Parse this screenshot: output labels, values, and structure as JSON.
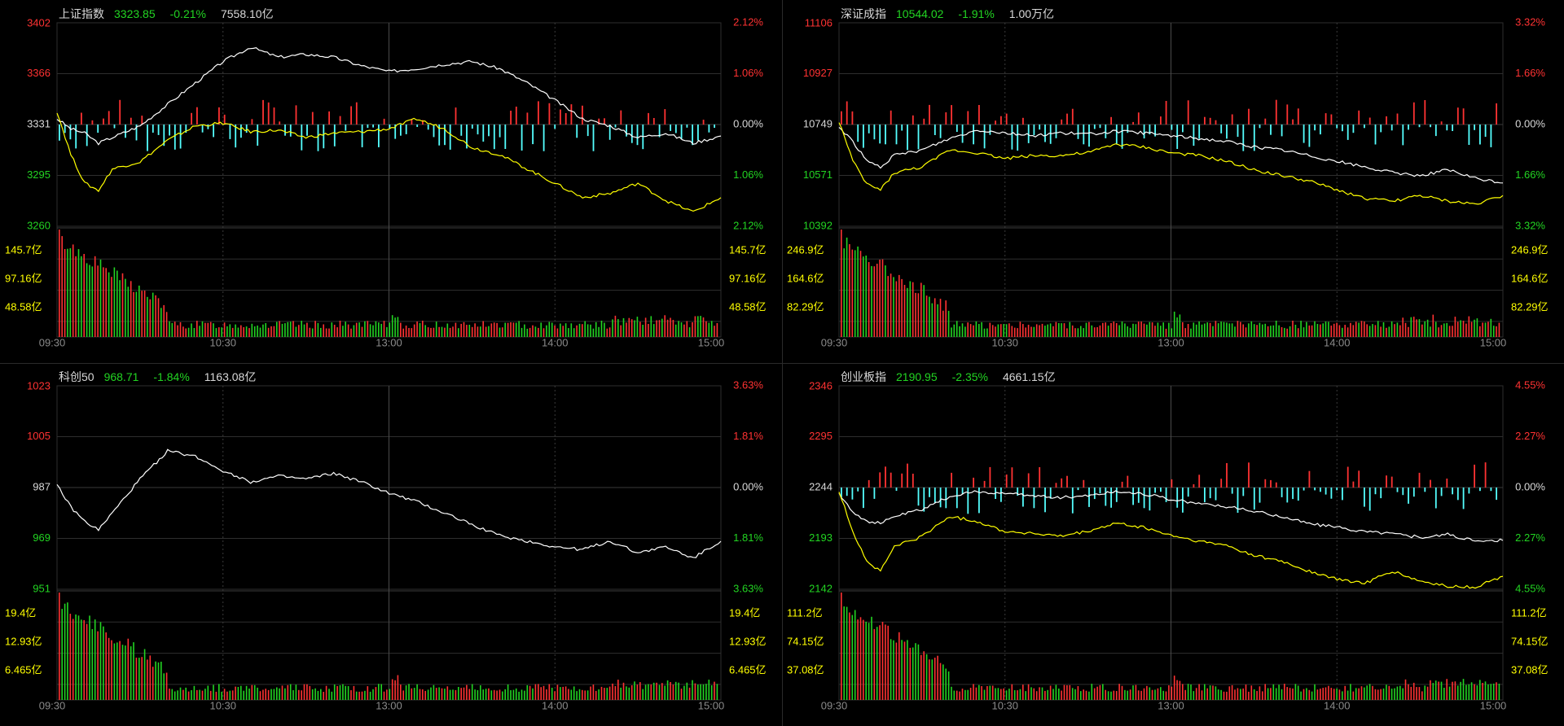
{
  "chart_data": [
    {
      "type": "line",
      "title": "上证指数",
      "price": "3323.85",
      "change_pct": "-0.21%",
      "amount": "7558.10亿",
      "y_ticks_left": [
        "3402",
        "3366",
        "3331",
        "3295",
        "3260"
      ],
      "y_ticks_right": [
        "2.12%",
        "1.06%",
        "0.00%",
        "1.06%",
        "2.12%"
      ],
      "ylim": [
        3260,
        3402
      ],
      "prev_close": 3331,
      "volume_ticks_left": [
        "145.7亿",
        "97.16亿",
        "48.58亿"
      ],
      "volume_ticks_right": [
        "145.7亿",
        "97.16亿",
        "48.58亿"
      ],
      "x_ticks": [
        "09:30",
        "10:30",
        "13:00",
        "14:00",
        "15:00"
      ],
      "has_yellow": true,
      "has_bars": true,
      "series": [
        {
          "color": "#ffffff",
          "x": [
            0,
            5,
            10,
            15,
            20,
            30,
            40,
            50,
            60,
            70,
            80,
            90,
            100,
            110,
            120,
            130,
            140,
            150,
            160,
            170,
            180,
            190,
            200,
            210,
            220,
            230,
            240
          ],
          "y": [
            3335,
            3328,
            3325,
            3318,
            3322,
            3330,
            3345,
            3360,
            3375,
            3385,
            3378,
            3380,
            3378,
            3372,
            3368,
            3370,
            3373,
            3375,
            3370,
            3360,
            3348,
            3335,
            3330,
            3322,
            3325,
            3318,
            3323
          ]
        },
        {
          "color": "#ffff00",
          "x": [
            0,
            5,
            10,
            15,
            20,
            30,
            40,
            50,
            60,
            70,
            80,
            90,
            100,
            110,
            120,
            130,
            140,
            150,
            160,
            170,
            180,
            190,
            200,
            210,
            220,
            230,
            240
          ],
          "y": [
            3340,
            3310,
            3290,
            3285,
            3300,
            3305,
            3320,
            3330,
            3332,
            3326,
            3327,
            3322,
            3325,
            3326,
            3328,
            3335,
            3328,
            3315,
            3310,
            3300,
            3290,
            3280,
            3283,
            3290,
            3278,
            3270,
            3280
          ]
        }
      ]
    },
    {
      "type": "line",
      "title": "深证成指",
      "price": "10544.02",
      "change_pct": "-1.91%",
      "amount": "1.00万亿",
      "y_ticks_left": [
        "11106",
        "10927",
        "10749",
        "10571",
        "10392"
      ],
      "y_ticks_right": [
        "3.32%",
        "1.66%",
        "0.00%",
        "1.66%",
        "3.32%"
      ],
      "ylim": [
        10392,
        11106
      ],
      "prev_close": 10749,
      "volume_ticks_left": [
        "246.9亿",
        "164.6亿",
        "82.29亿"
      ],
      "volume_ticks_right": [
        "246.9亿",
        "164.6亿",
        "82.29亿"
      ],
      "x_ticks": [
        "09:30",
        "10:30",
        "13:00",
        "14:00",
        "15:00"
      ],
      "has_yellow": true,
      "has_bars": true,
      "series": [
        {
          "color": "#ffffff",
          "x": [
            0,
            5,
            10,
            15,
            20,
            30,
            40,
            50,
            60,
            70,
            80,
            90,
            100,
            110,
            120,
            130,
            140,
            150,
            160,
            170,
            180,
            190,
            200,
            210,
            220,
            230,
            240
          ],
          "y": [
            10740,
            10690,
            10620,
            10600,
            10640,
            10660,
            10700,
            10730,
            10720,
            10710,
            10720,
            10715,
            10725,
            10720,
            10710,
            10700,
            10690,
            10670,
            10660,
            10640,
            10620,
            10600,
            10580,
            10570,
            10590,
            10560,
            10544
          ]
        },
        {
          "color": "#ffff00",
          "x": [
            0,
            5,
            10,
            15,
            20,
            30,
            40,
            50,
            60,
            70,
            80,
            90,
            100,
            110,
            120,
            130,
            140,
            150,
            160,
            170,
            180,
            190,
            200,
            210,
            220,
            230,
            240
          ],
          "y": [
            10760,
            10620,
            10540,
            10520,
            10580,
            10600,
            10660,
            10650,
            10630,
            10640,
            10640,
            10650,
            10680,
            10670,
            10650,
            10640,
            10620,
            10590,
            10570,
            10550,
            10520,
            10490,
            10480,
            10500,
            10480,
            10470,
            10500
          ]
        }
      ]
    },
    {
      "type": "line",
      "title": "科创50",
      "price": "968.71",
      "change_pct": "-1.84%",
      "amount": "1163.08亿",
      "y_ticks_left": [
        "1023",
        "1005",
        "987",
        "969",
        "951"
      ],
      "y_ticks_right": [
        "3.63%",
        "1.81%",
        "0.00%",
        "1.81%",
        "3.63%"
      ],
      "ylim": [
        951,
        1023
      ],
      "prev_close": 987,
      "volume_ticks_left": [
        "19.4亿",
        "12.93亿",
        "6.465亿"
      ],
      "volume_ticks_right": [
        "19.4亿",
        "12.93亿",
        "6.465亿"
      ],
      "x_ticks": [
        "09:30",
        "10:30",
        "13:00",
        "14:00",
        "15:00"
      ],
      "has_yellow": false,
      "has_bars": false,
      "series": [
        {
          "color": "#ffffff",
          "x": [
            0,
            5,
            10,
            15,
            20,
            30,
            40,
            50,
            60,
            70,
            80,
            90,
            100,
            110,
            120,
            130,
            140,
            150,
            160,
            170,
            180,
            190,
            200,
            210,
            220,
            230,
            240
          ],
          "y": [
            988,
            980,
            975,
            972,
            978,
            990,
            1000,
            998,
            993,
            989,
            991,
            990,
            992,
            989,
            985,
            982,
            978,
            974,
            970,
            968,
            966,
            965,
            968,
            964,
            966,
            962,
            968
          ]
        }
      ]
    },
    {
      "type": "line",
      "title": "创业板指",
      "price": "2190.95",
      "change_pct": "-2.35%",
      "amount": "4661.15亿",
      "y_ticks_left": [
        "2346",
        "2295",
        "2244",
        "2193",
        "2142"
      ],
      "y_ticks_right": [
        "4.55%",
        "2.27%",
        "0.00%",
        "2.27%",
        "4.55%"
      ],
      "ylim": [
        2142,
        2346
      ],
      "prev_close": 2244,
      "volume_ticks_left": [
        "111.2亿",
        "74.15亿",
        "37.08亿"
      ],
      "volume_ticks_right": [
        "111.2亿",
        "74.15亿",
        "37.08亿"
      ],
      "x_ticks": [
        "09:30",
        "10:30",
        "13:00",
        "14:00",
        "15:00"
      ],
      "has_yellow": true,
      "has_bars": true,
      "series": [
        {
          "color": "#ffffff",
          "x": [
            0,
            5,
            10,
            15,
            20,
            30,
            40,
            50,
            60,
            70,
            80,
            90,
            100,
            110,
            120,
            130,
            140,
            150,
            160,
            170,
            180,
            190,
            200,
            210,
            220,
            230,
            240
          ],
          "y": [
            2238,
            2220,
            2210,
            2208,
            2215,
            2222,
            2235,
            2240,
            2238,
            2236,
            2234,
            2236,
            2240,
            2238,
            2232,
            2228,
            2225,
            2220,
            2215,
            2208,
            2204,
            2200,
            2198,
            2194,
            2197,
            2190,
            2191
          ]
        },
        {
          "color": "#ffff00",
          "x": [
            0,
            5,
            10,
            15,
            20,
            30,
            40,
            50,
            60,
            70,
            80,
            90,
            100,
            110,
            120,
            130,
            140,
            150,
            160,
            170,
            180,
            190,
            200,
            210,
            220,
            230,
            240
          ],
          "y": [
            2240,
            2200,
            2170,
            2160,
            2185,
            2195,
            2215,
            2210,
            2200,
            2198,
            2195,
            2200,
            2208,
            2204,
            2196,
            2190,
            2186,
            2176,
            2170,
            2160,
            2152,
            2148,
            2160,
            2150,
            2145,
            2144,
            2155
          ]
        }
      ]
    }
  ],
  "colors": {
    "up": "#ff3232",
    "down": "#22d422",
    "flat": "#d8d8d8",
    "yellow_ticks": "#ffff00",
    "neg_bar": "#54ffff",
    "grid": "#2e2e2e"
  }
}
